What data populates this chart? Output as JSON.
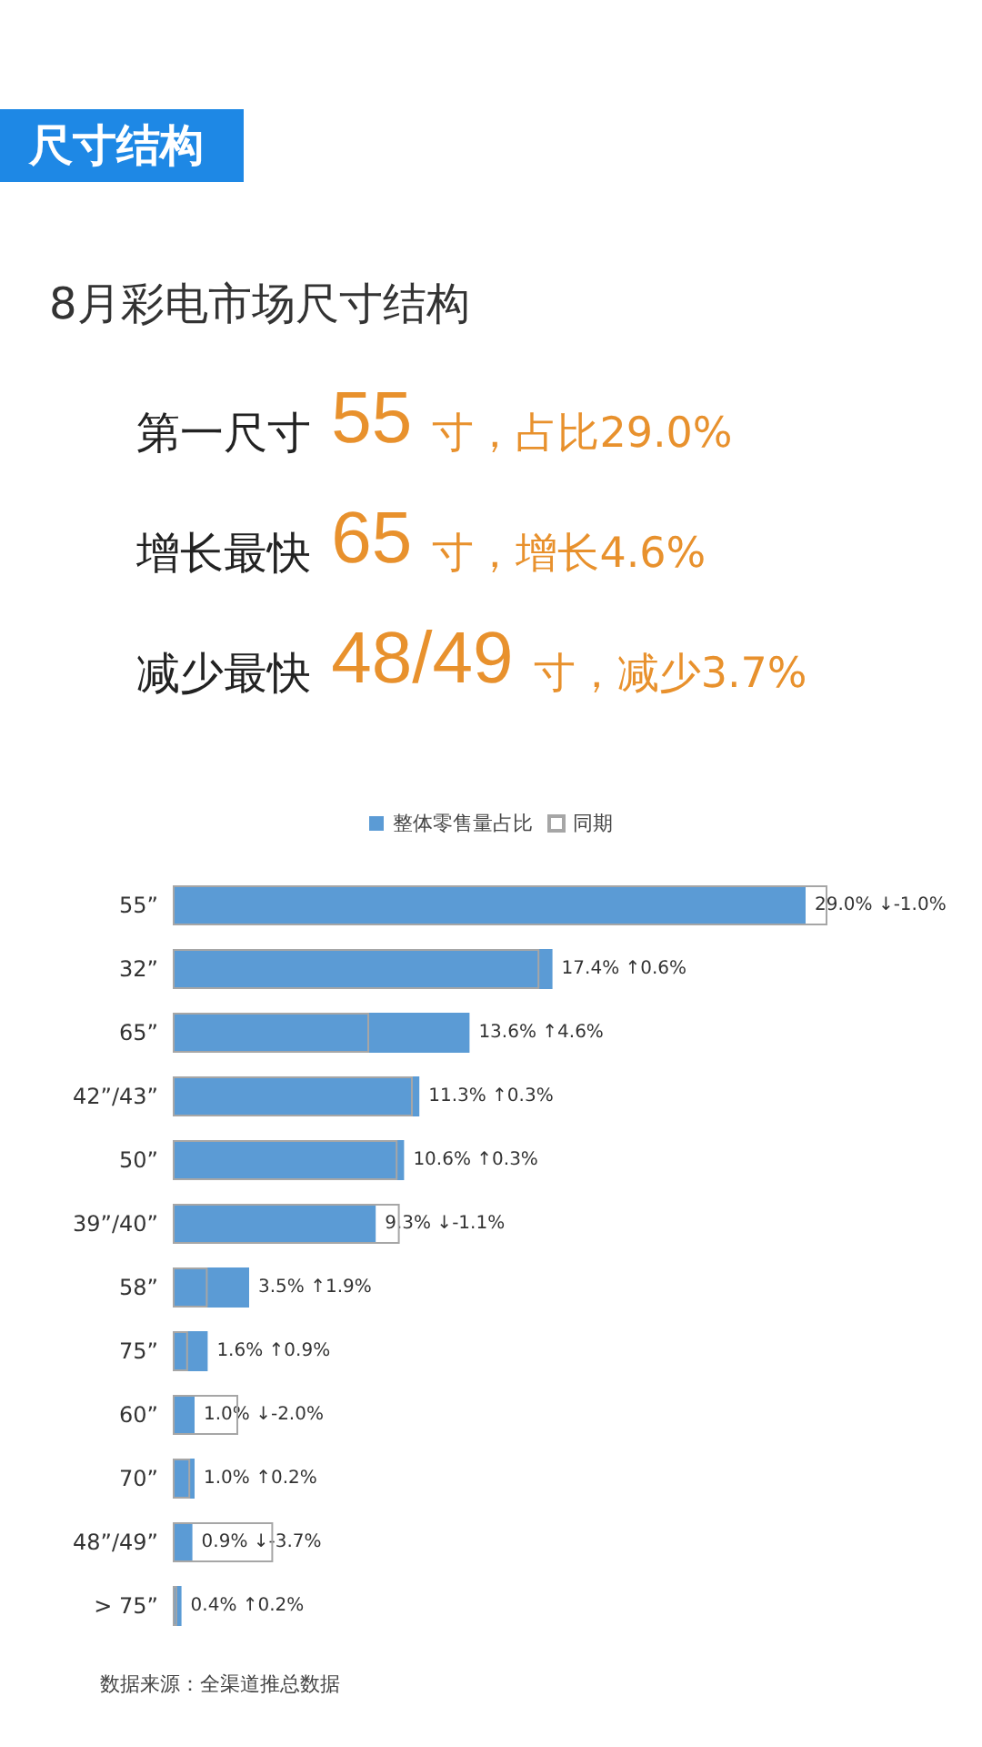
{
  "chart_data": {
    "type": "bar",
    "orientation": "horizontal",
    "title": "尺寸结构",
    "subtitle": "8月彩电市场尺寸结构",
    "annotations": [
      "第一尺寸 55 寸，占比29.0%",
      "增长最快 65 寸，增长4.6%",
      "减少最快 48/49 寸，减少3.7%",
      "数据来源：全渠道推总数据"
    ],
    "categories": [
      "55”",
      "32”",
      "65”",
      "42”/43”",
      "50”",
      "39”/40”",
      "58”",
      "75”",
      "60”",
      "70”",
      "48”/49”",
      "> 75”"
    ],
    "series": [
      {
        "name": "整体零售量占比",
        "color": "#5b9bd5",
        "values": [
          29.0,
          17.4,
          13.6,
          11.3,
          10.6,
          9.3,
          3.5,
          1.6,
          1.0,
          1.0,
          0.9,
          0.4
        ],
        "value_labels": [
          "29.0% ↓-1.0%",
          "17.4% ↑0.6%",
          "13.6% ↑4.6%",
          "11.3% ↑0.3%",
          "10.6% ↑0.3%",
          "9.3% ↓-1.1%",
          "3.5% ↑1.9%",
          "1.6% ↑0.9%",
          "1.0% ↓-2.0%",
          "1.0% ↑0.2%",
          "0.9% ↓-3.7%",
          "0.4% ↑0.2%"
        ]
      },
      {
        "name": "同期",
        "color": "#a6a6a6",
        "values": [
          30.0,
          16.8,
          9.0,
          11.0,
          10.3,
          10.4,
          1.6,
          0.7,
          3.0,
          0.8,
          4.6,
          0.2
        ]
      }
    ],
    "legend": "top",
    "tick_labels": "y"
  }
}
